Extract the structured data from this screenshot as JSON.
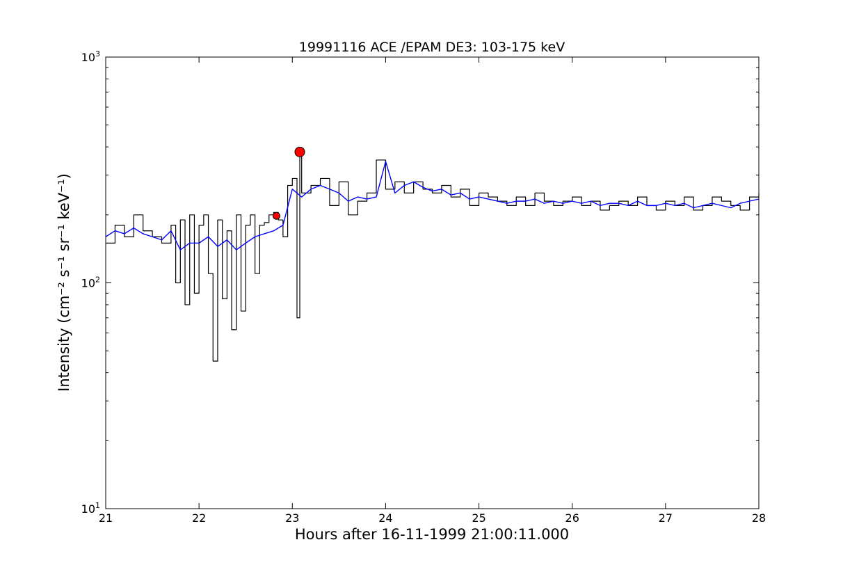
{
  "chart_data": {
    "type": "line",
    "title": "19991116 ACE /EPAM DE3: 103-175 keV",
    "xlabel": "Hours after 16-11-1999 21:00:11.000",
    "ylabel": "Intensity (cm⁻² s⁻¹ sr⁻¹ keV⁻¹)",
    "xlim": [
      21,
      28
    ],
    "ylim": [
      10,
      1000
    ],
    "yscale": "log",
    "grid": false,
    "x_ticks": [
      {
        "value": 21,
        "label": "21"
      },
      {
        "value": 22,
        "label": "22"
      },
      {
        "value": 23,
        "label": "23"
      },
      {
        "value": 24,
        "label": "24"
      },
      {
        "value": 25,
        "label": "25"
      },
      {
        "value": 26,
        "label": "26"
      },
      {
        "value": 27,
        "label": "27"
      },
      {
        "value": 28,
        "label": "28"
      }
    ],
    "y_ticks": [
      {
        "value": 10,
        "base": "10",
        "exp": "1"
      },
      {
        "value": 100,
        "base": "10",
        "exp": "2"
      },
      {
        "value": 1000,
        "base": "10",
        "exp": "3"
      }
    ],
    "series": [
      {
        "role": "raw",
        "color": "#000000",
        "step": true,
        "x": [
          21.0,
          21.1,
          21.2,
          21.3,
          21.4,
          21.5,
          21.6,
          21.7,
          21.75,
          21.8,
          21.85,
          21.9,
          21.95,
          22.0,
          22.05,
          22.1,
          22.15,
          22.2,
          22.25,
          22.3,
          22.35,
          22.4,
          22.45,
          22.5,
          22.55,
          22.6,
          22.65,
          22.7,
          22.75,
          22.8,
          22.85,
          22.9,
          22.95,
          23.0,
          23.05,
          23.08,
          23.1,
          23.2,
          23.3,
          23.4,
          23.5,
          23.6,
          23.7,
          23.8,
          23.9,
          24.0,
          24.1,
          24.2,
          24.3,
          24.4,
          24.5,
          24.6,
          24.7,
          24.8,
          24.9,
          25.0,
          25.1,
          25.2,
          25.3,
          25.4,
          25.5,
          25.6,
          25.7,
          25.8,
          25.9,
          26.0,
          26.1,
          26.2,
          26.3,
          26.4,
          26.5,
          26.6,
          26.7,
          26.8,
          26.9,
          27.0,
          27.1,
          27.2,
          27.3,
          27.4,
          27.5,
          27.6,
          27.7,
          27.8,
          27.9,
          28.0
        ],
        "y": [
          150,
          180,
          160,
          200,
          170,
          160,
          150,
          180,
          100,
          190,
          80,
          200,
          90,
          180,
          200,
          110,
          45,
          190,
          85,
          170,
          62,
          200,
          75,
          180,
          200,
          110,
          180,
          185,
          200,
          205,
          190,
          160,
          270,
          290,
          70,
          370,
          250,
          270,
          290,
          220,
          280,
          200,
          230,
          250,
          350,
          260,
          280,
          250,
          280,
          260,
          250,
          270,
          240,
          260,
          220,
          250,
          240,
          230,
          220,
          240,
          220,
          250,
          230,
          220,
          230,
          240,
          220,
          230,
          210,
          220,
          230,
          220,
          240,
          220,
          210,
          230,
          220,
          240,
          210,
          220,
          240,
          230,
          220,
          210,
          240,
          250
        ]
      },
      {
        "role": "smoothed",
        "color": "#0000ff",
        "step": false,
        "x": [
          21.0,
          21.1,
          21.2,
          21.3,
          21.4,
          21.5,
          21.6,
          21.7,
          21.8,
          21.9,
          22.0,
          22.1,
          22.2,
          22.3,
          22.4,
          22.5,
          22.6,
          22.7,
          22.8,
          22.9,
          23.0,
          23.1,
          23.2,
          23.3,
          23.4,
          23.5,
          23.6,
          23.7,
          23.8,
          23.9,
          24.0,
          24.1,
          24.2,
          24.3,
          24.4,
          24.5,
          24.6,
          24.7,
          24.8,
          24.9,
          25.0,
          25.1,
          25.2,
          25.3,
          25.4,
          25.5,
          25.6,
          25.7,
          25.8,
          25.9,
          26.0,
          26.1,
          26.2,
          26.3,
          26.4,
          26.5,
          26.6,
          26.7,
          26.8,
          26.9,
          27.0,
          27.1,
          27.2,
          27.3,
          27.4,
          27.5,
          27.6,
          27.7,
          27.8,
          27.9,
          28.0
        ],
        "y": [
          160,
          170,
          165,
          175,
          165,
          160,
          155,
          170,
          140,
          150,
          150,
          160,
          145,
          155,
          140,
          150,
          160,
          165,
          170,
          180,
          260,
          240,
          260,
          270,
          260,
          250,
          230,
          240,
          235,
          240,
          345,
          250,
          270,
          280,
          265,
          255,
          260,
          245,
          250,
          235,
          240,
          235,
          230,
          225,
          230,
          230,
          235,
          225,
          230,
          225,
          230,
          225,
          230,
          220,
          225,
          225,
          220,
          230,
          220,
          220,
          225,
          220,
          225,
          215,
          220,
          225,
          220,
          215,
          225,
          230,
          235
        ]
      }
    ],
    "markers": [
      {
        "x": 22.83,
        "y": 198,
        "color": "#ff0000",
        "size": "small"
      },
      {
        "x": 23.08,
        "y": 380,
        "color": "#ff0000",
        "size": "large"
      }
    ]
  }
}
